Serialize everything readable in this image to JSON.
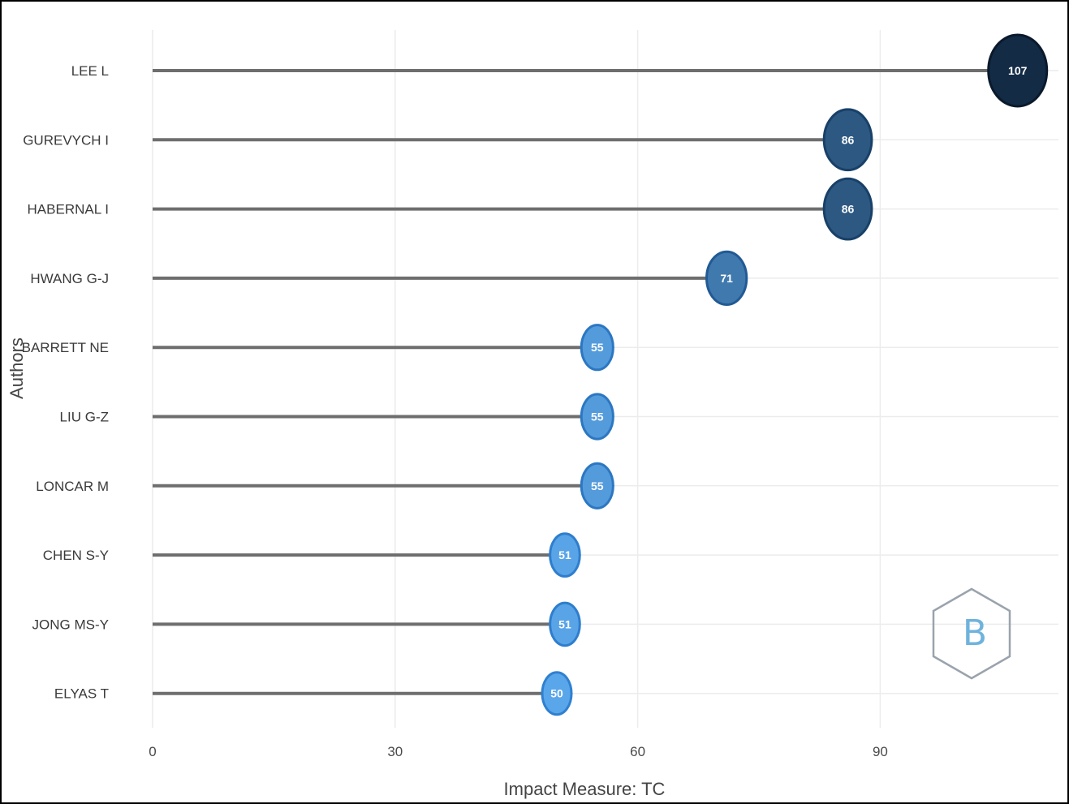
{
  "chart_data": {
    "type": "lollipop",
    "xlabel": "Impact Measure: TC",
    "ylabel": "Authors",
    "xlim": [
      0,
      112
    ],
    "xticks": [
      0,
      30,
      60,
      90
    ],
    "grid": true,
    "categories": [
      "LEE L",
      "GUREVYCH I",
      "HABERNAL I",
      "HWANG G-J",
      "BARRETT NE",
      "LIU G-Z",
      "LONCAR M",
      "CHEN S-Y",
      "JONG MS-Y",
      "ELYAS T"
    ],
    "values": [
      107,
      86,
      86,
      71,
      55,
      55,
      55,
      51,
      51,
      50
    ],
    "color_range": [
      "#5aa6ea",
      "#132b45"
    ]
  },
  "logo": {
    "name": "bibliometrix-logo-icon",
    "text": "B"
  }
}
